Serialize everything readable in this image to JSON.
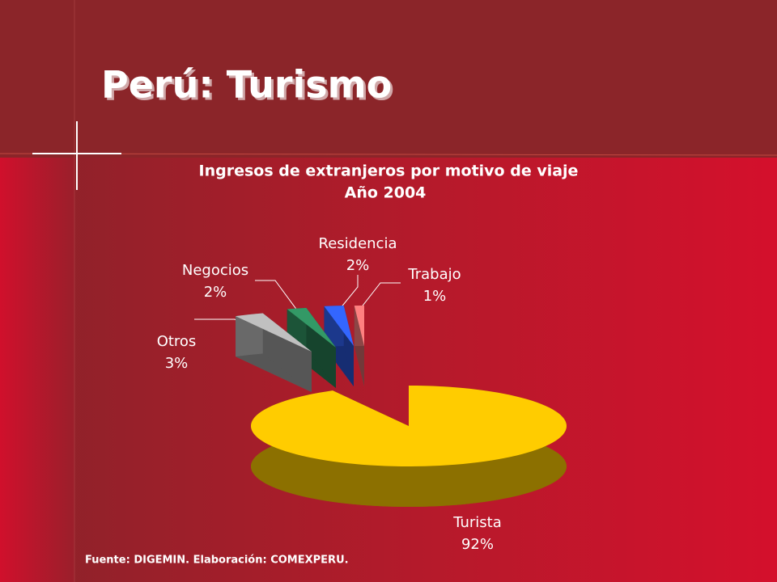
{
  "slide": {
    "title": "Perú: Turismo",
    "source": "Fuente: DIGEMIN. Elaboración: COMEXPERU."
  },
  "chart_data": {
    "type": "pie3d",
    "title": "Ingresos de extranjeros por motivo de viaje",
    "subtitle": "Año 2004",
    "categories": [
      "Turista",
      "Otros",
      "Negocios",
      "Residencia",
      "Trabajo"
    ],
    "values": [
      92,
      3,
      2,
      2,
      1
    ],
    "value_labels": [
      "92%",
      "3%",
      "2%",
      "2%",
      "1%"
    ],
    "colors": [
      "#ffcc00",
      "#c0c0c0",
      "#339966",
      "#3366ff",
      "#ff8080"
    ]
  }
}
